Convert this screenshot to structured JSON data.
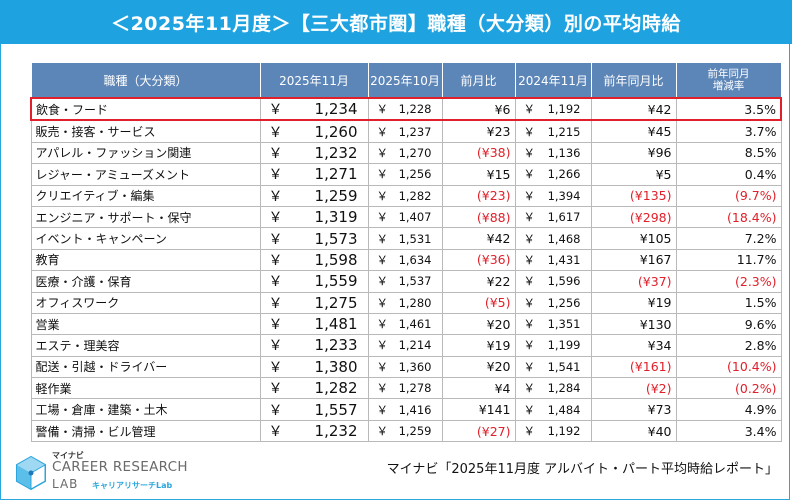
{
  "title": "＜2025年11月度＞【三大都市圏】職種（大分類）別の平均時給",
  "columns": {
    "category": "職種（大分類）",
    "nov2025": "2025年11月",
    "oct2025": "2025年10月",
    "mom": "前月比",
    "nov2024": "2024年11月",
    "yoy": "前年同月比",
    "yoy_rate": "前年同月\n増減率"
  },
  "yen": "￥",
  "rows": [
    {
      "category": "飲食・フード",
      "nov2025": "1,234",
      "oct2025": "1,228",
      "mom": "¥6",
      "mom_neg": false,
      "nov2024": "1,192",
      "yoy": "¥42",
      "yoy_neg": false,
      "rate": "3.5%",
      "rate_neg": false
    },
    {
      "category": "販売・接客・サービス",
      "nov2025": "1,260",
      "oct2025": "1,237",
      "mom": "¥23",
      "mom_neg": false,
      "nov2024": "1,215",
      "yoy": "¥45",
      "yoy_neg": false,
      "rate": "3.7%",
      "rate_neg": false
    },
    {
      "category": "アパレル・ファッション関連",
      "nov2025": "1,232",
      "oct2025": "1,270",
      "mom": "(¥38)",
      "mom_neg": true,
      "nov2024": "1,136",
      "yoy": "¥96",
      "yoy_neg": false,
      "rate": "8.5%",
      "rate_neg": false
    },
    {
      "category": "レジャー・アミューズメント",
      "nov2025": "1,271",
      "oct2025": "1,256",
      "mom": "¥15",
      "mom_neg": false,
      "nov2024": "1,266",
      "yoy": "¥5",
      "yoy_neg": false,
      "rate": "0.4%",
      "rate_neg": false
    },
    {
      "category": "クリエイティブ・編集",
      "nov2025": "1,259",
      "oct2025": "1,282",
      "mom": "(¥23)",
      "mom_neg": true,
      "nov2024": "1,394",
      "yoy": "(¥135)",
      "yoy_neg": true,
      "rate": "(9.7%)",
      "rate_neg": true
    },
    {
      "category": "エンジニア・サポート・保守",
      "nov2025": "1,319",
      "oct2025": "1,407",
      "mom": "(¥88)",
      "mom_neg": true,
      "nov2024": "1,617",
      "yoy": "(¥298)",
      "yoy_neg": true,
      "rate": "(18.4%)",
      "rate_neg": true
    },
    {
      "category": "イベント・キャンペーン",
      "nov2025": "1,573",
      "oct2025": "1,531",
      "mom": "¥42",
      "mom_neg": false,
      "nov2024": "1,468",
      "yoy": "¥105",
      "yoy_neg": false,
      "rate": "7.2%",
      "rate_neg": false
    },
    {
      "category": "教育",
      "nov2025": "1,598",
      "oct2025": "1,634",
      "mom": "(¥36)",
      "mom_neg": true,
      "nov2024": "1,431",
      "yoy": "¥167",
      "yoy_neg": false,
      "rate": "11.7%",
      "rate_neg": false
    },
    {
      "category": "医療・介護・保育",
      "nov2025": "1,559",
      "oct2025": "1,537",
      "mom": "¥22",
      "mom_neg": false,
      "nov2024": "1,596",
      "yoy": "(¥37)",
      "yoy_neg": true,
      "rate": "(2.3%)",
      "rate_neg": true
    },
    {
      "category": "オフィスワーク",
      "nov2025": "1,275",
      "oct2025": "1,280",
      "mom": "(¥5)",
      "mom_neg": true,
      "nov2024": "1,256",
      "yoy": "¥19",
      "yoy_neg": false,
      "rate": "1.5%",
      "rate_neg": false
    },
    {
      "category": "営業",
      "nov2025": "1,481",
      "oct2025": "1,461",
      "mom": "¥20",
      "mom_neg": false,
      "nov2024": "1,351",
      "yoy": "¥130",
      "yoy_neg": false,
      "rate": "9.6%",
      "rate_neg": false
    },
    {
      "category": "エステ・理美容",
      "nov2025": "1,233",
      "oct2025": "1,214",
      "mom": "¥19",
      "mom_neg": false,
      "nov2024": "1,199",
      "yoy": "¥34",
      "yoy_neg": false,
      "rate": "2.8%",
      "rate_neg": false
    },
    {
      "category": "配送・引越・ドライバー",
      "nov2025": "1,380",
      "oct2025": "1,360",
      "mom": "¥20",
      "mom_neg": false,
      "nov2024": "1,541",
      "yoy": "(¥161)",
      "yoy_neg": true,
      "rate": "(10.4%)",
      "rate_neg": true
    },
    {
      "category": "軽作業",
      "nov2025": "1,282",
      "oct2025": "1,278",
      "mom": "¥4",
      "mom_neg": false,
      "nov2024": "1,284",
      "yoy": "(¥2)",
      "yoy_neg": true,
      "rate": "(0.2%)",
      "rate_neg": true
    },
    {
      "category": "工場・倉庫・建築・土木",
      "nov2025": "1,557",
      "oct2025": "1,416",
      "mom": "¥141",
      "mom_neg": false,
      "nov2024": "1,484",
      "yoy": "¥73",
      "yoy_neg": false,
      "rate": "4.9%",
      "rate_neg": false
    },
    {
      "category": "警備・清掃・ビル管理",
      "nov2025": "1,232",
      "oct2025": "1,259",
      "mom": "(¥27)",
      "mom_neg": true,
      "nov2024": "1,192",
      "yoy": "¥40",
      "yoy_neg": false,
      "rate": "3.4%",
      "rate_neg": false
    }
  ],
  "highlighted_row": 0,
  "logo": {
    "small": "マイナビ",
    "line1": "CAREER RESEARCH",
    "line2": "LAB",
    "line3": "キャリアリサーチLab"
  },
  "source": "マイナビ「2025年11月度 アルバイト・パート平均時給レポート」",
  "colors": {
    "header_bg": "#1ea3e0",
    "table_header_bg": "#5d86b8",
    "negative": "#e0202a",
    "highlight_border": "#e0202a"
  }
}
